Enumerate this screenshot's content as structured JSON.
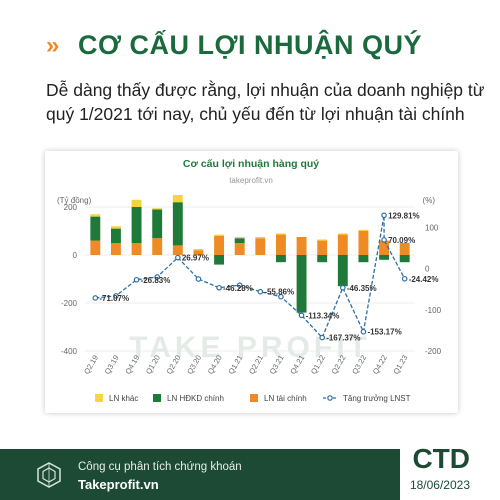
{
  "header": {
    "chevron": "»",
    "title": "CƠ CẤU LỢI NHUẬN QUÝ",
    "subtitle": "Dễ dàng thấy được rằng, lợi nhuận của doanh nghiệp từ quý 1/2021 tới nay, chủ yếu đến từ lợi nhuận tài chính"
  },
  "footer": {
    "line1": "Công cụ phân tích chứng khoán",
    "line2": "Takeprofit.vn",
    "ticker": "CTD",
    "date": "18/06/2023"
  },
  "chart_data": {
    "type": "bar",
    "title": "Cơ cấu lợi nhuận hàng quý",
    "watermark": "takeprofit.vn",
    "watermark_big": "TAKE PROFIT",
    "left_axis_label": "(Tỷ đồng)",
    "right_axis_label": "(%)",
    "left_ylim": [
      -400,
      200
    ],
    "left_ticks": [
      200,
      0,
      -200,
      -400
    ],
    "right_ylim": [
      -200,
      150
    ],
    "right_ticks": [
      100,
      0,
      -100,
      -200
    ],
    "categories": [
      "Q2.19",
      "Q3.19",
      "Q4.19",
      "Q1.20",
      "Q2.20",
      "Q3.20",
      "Q4.20",
      "Q1.21",
      "Q2.21",
      "Q3.21",
      "Q4.21",
      "Q1.22",
      "Q2.22",
      "Q3.22",
      "Q4.22",
      "Q1.23"
    ],
    "series": [
      {
        "name": "LN khác",
        "color": "#f5d53b",
        "values": [
          10,
          10,
          30,
          5,
          30,
          5,
          5,
          5,
          5,
          5,
          0,
          5,
          5,
          5,
          0,
          0
        ]
      },
      {
        "name": "LN HĐKD chính",
        "color": "#1f7a3a",
        "values": [
          100,
          60,
          150,
          120,
          180,
          0,
          -40,
          20,
          0,
          -30,
          -240,
          -30,
          -130,
          -30,
          -20,
          -30
        ]
      },
      {
        "name": "LN tài chính",
        "color": "#f08a24",
        "values": [
          60,
          50,
          50,
          70,
          40,
          20,
          80,
          50,
          70,
          85,
          75,
          60,
          85,
          100,
          60,
          50
        ]
      }
    ],
    "line_series": {
      "name": "Tăng trưởng LNST",
      "color": "#2e6fa3",
      "values": [
        -71.07,
        -66,
        -26.83,
        -20,
        26.97,
        -25,
        -46.28,
        -40,
        -55.86,
        -68,
        -113.34,
        -167.37,
        -46.35,
        -153.17,
        70.09,
        -24.42
      ],
      "point_labels": [
        "-71.07%",
        "",
        "-26.83%",
        "",
        "26.97%",
        "",
        "-46.28%",
        "",
        "-55.86%",
        "",
        "-113.34%",
        "-167.37%",
        "-46.35%",
        "-153.17%",
        "70.09%",
        "-24.42%"
      ],
      "extra_label": {
        "index": 14,
        "text": "129.81%",
        "value": 129.81
      }
    },
    "legend": [
      "LN khác",
      "LN HĐKD chính",
      "LN tài chính",
      "Tăng trưởng LNST"
    ],
    "legend_position": "bottom"
  }
}
